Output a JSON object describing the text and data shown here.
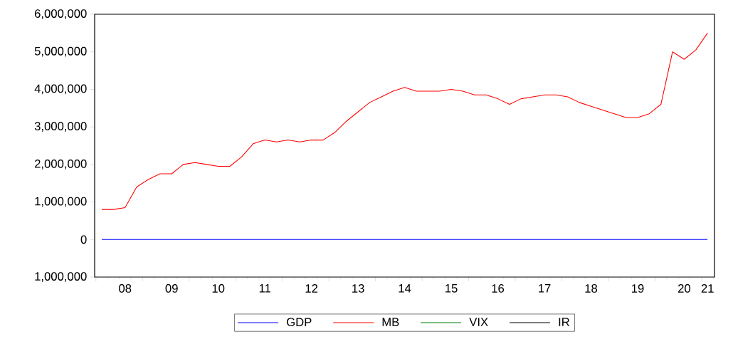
{
  "chart_data": {
    "type": "line",
    "categories": [
      null,
      null,
      "08",
      null,
      null,
      null,
      "09",
      null,
      null,
      null,
      "10",
      null,
      null,
      null,
      "11",
      null,
      null,
      null,
      "12",
      null,
      null,
      null,
      "13",
      null,
      null,
      null,
      "14",
      null,
      null,
      null,
      "15",
      null,
      null,
      null,
      "16",
      null,
      null,
      null,
      "17",
      null,
      null,
      null,
      "18",
      null,
      null,
      null,
      "19",
      null,
      null,
      null,
      "20",
      null,
      "21"
    ],
    "series": [
      {
        "name": "GDP",
        "color": "#0000ff",
        "values": [
          0,
          0,
          0,
          0,
          0,
          0,
          0,
          0,
          0,
          0,
          0,
          0,
          0,
          0,
          0,
          0,
          0,
          0,
          0,
          0,
          0,
          0,
          0,
          0,
          0,
          0,
          0,
          0,
          0,
          0,
          0,
          0,
          0,
          0,
          0,
          0,
          0,
          0,
          0,
          0,
          0,
          0,
          0,
          0,
          0,
          0,
          0,
          0,
          0,
          0,
          0,
          0,
          0
        ]
      },
      {
        "name": "MB",
        "color": "#ff0000",
        "values": [
          800000,
          800000,
          850000,
          1400000,
          1600000,
          1750000,
          1750000,
          2000000,
          2050000,
          2000000,
          1950000,
          1950000,
          2200000,
          2550000,
          2650000,
          2600000,
          2650000,
          2600000,
          2650000,
          2650000,
          2850000,
          3150000,
          3400000,
          3650000,
          3800000,
          3950000,
          4050000,
          3950000,
          3950000,
          3950000,
          4000000,
          3950000,
          3850000,
          3850000,
          3750000,
          3600000,
          3750000,
          3800000,
          3850000,
          3850000,
          3800000,
          3650000,
          3550000,
          3450000,
          3350000,
          3250000,
          3250000,
          3350000,
          3600000,
          5000000,
          4800000,
          5050000,
          5500000
        ]
      },
      {
        "name": "VIX",
        "color": "#008000",
        "values": [
          null,
          null,
          null,
          null,
          null,
          null,
          null,
          null,
          null,
          null,
          null,
          null,
          null,
          null,
          null,
          null,
          null,
          null,
          null,
          null,
          null,
          null,
          null,
          null,
          null,
          null,
          null,
          null,
          null,
          null,
          null,
          null,
          null,
          null,
          null,
          null,
          null,
          null,
          null,
          null,
          null,
          null,
          null,
          null,
          null,
          null,
          null,
          null,
          null,
          null,
          null,
          null,
          null
        ]
      },
      {
        "name": "IR",
        "color": "#000000",
        "values": [
          null,
          null,
          null,
          null,
          null,
          null,
          null,
          null,
          null,
          null,
          null,
          null,
          null,
          null,
          null,
          null,
          null,
          null,
          null,
          null,
          null,
          null,
          null,
          null,
          null,
          null,
          null,
          null,
          null,
          null,
          null,
          null,
          null,
          null,
          null,
          null,
          null,
          null,
          null,
          null,
          null,
          null,
          null,
          null,
          null,
          null,
          null,
          null,
          null,
          null,
          null,
          null,
          null
        ]
      }
    ],
    "ylim": [
      -1000000,
      6000000
    ],
    "yticks": [
      {
        "value": -1000000,
        "label": "1,000,000"
      },
      {
        "value": 0,
        "label": "0"
      },
      {
        "value": 1000000,
        "label": "1,000,000"
      },
      {
        "value": 2000000,
        "label": "2,000,000"
      },
      {
        "value": 3000000,
        "label": "3,000,000"
      },
      {
        "value": 4000000,
        "label": "4,000,000"
      },
      {
        "value": 5000000,
        "label": "5,000,000"
      },
      {
        "value": 6000000,
        "label": "6,000,000"
      }
    ],
    "legend": "bottom",
    "marker": "none",
    "line_style": "solid"
  }
}
